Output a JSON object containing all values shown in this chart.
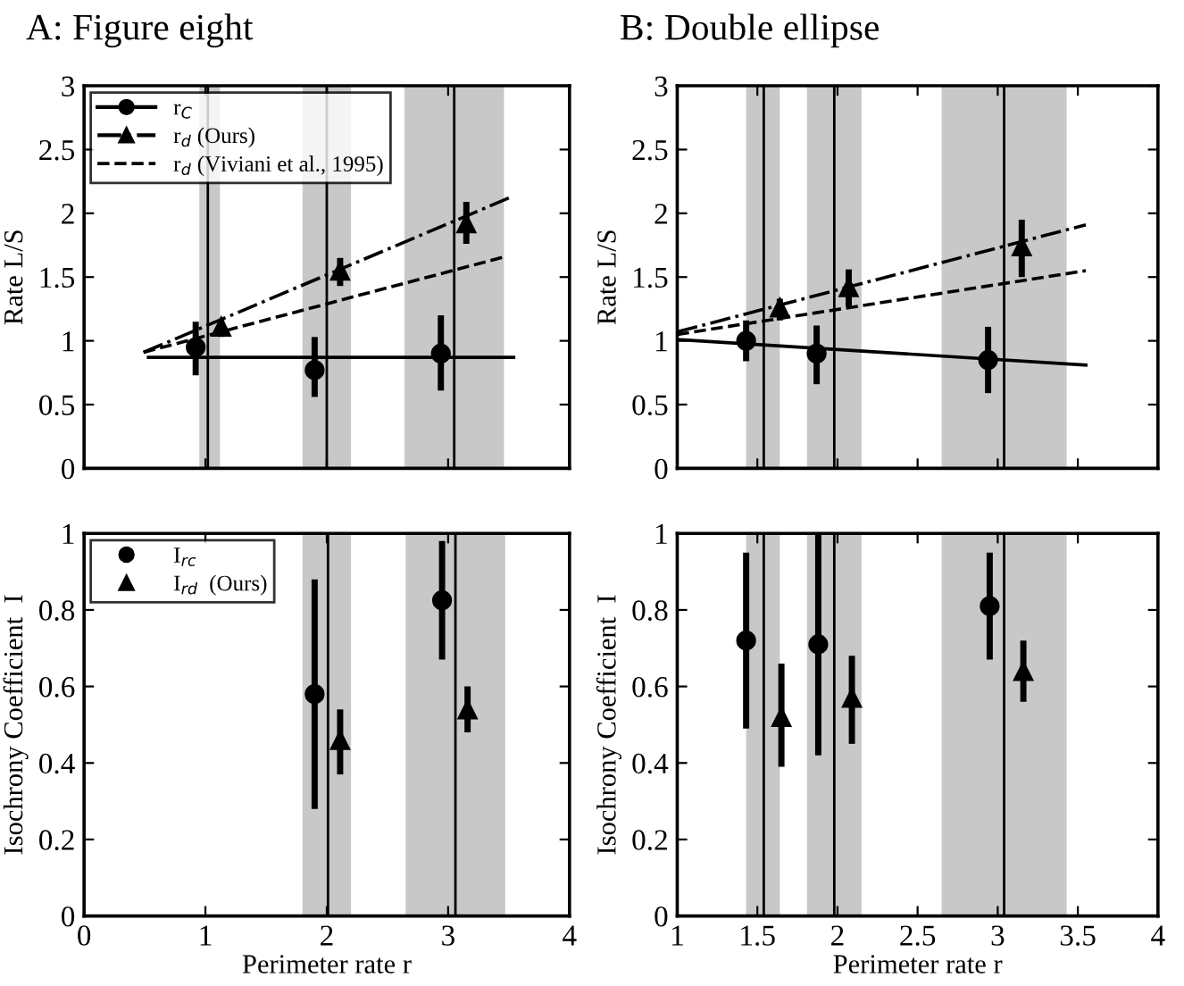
{
  "chart_data": [
    {
      "type": "scatter",
      "title": "A: Figure eight",
      "ylabel": "Rate L/S",
      "xlim": [
        0,
        4
      ],
      "xticks": [
        0,
        1,
        2,
        3,
        4
      ],
      "ylim": [
        0,
        3
      ],
      "yticks": [
        0,
        0.5,
        1,
        1.5,
        2,
        2.5,
        3
      ],
      "tick_labels": "y",
      "legend": "top left",
      "series": [
        {
          "name": "r$_{C}$",
          "color": "#000000",
          "marker": "circle",
          "line_style": "solid",
          "x": [
            0.92,
            1.9,
            2.94
          ],
          "values": [
            0.95,
            0.77,
            0.9
          ],
          "errors": [
            [
              0.73,
              1.15
            ],
            [
              0.56,
              1.03
            ],
            [
              0.61,
              1.2
            ]
          ]
        },
        {
          "name": "r$_{d}$ (Ours)",
          "color": "#000000",
          "marker": "triangle",
          "line_style": "dashdot",
          "x": [
            1.13,
            2.11,
            3.15
          ],
          "values": [
            1.11,
            1.55,
            1.92
          ],
          "errors": [
            [
              1.03,
              1.17
            ],
            [
              1.43,
              1.65
            ],
            [
              1.76,
              2.09
            ]
          ]
        },
        {
          "type": "line",
          "name": "r$_{d}$ (Viviani et al., 1995)",
          "color": "#000000",
          "line_style": "dashed",
          "x": [
            0.49,
            3.47
          ],
          "values": [
            0.91,
            1.66
          ]
        },
        {
          "type": "line",
          "color": "#000000",
          "line_style": "solid",
          "x": [
            0.53,
            3.54
          ],
          "values": [
            0.87,
            0.87
          ]
        },
        {
          "type": "line",
          "color": "#000000",
          "line_style": "dashdot",
          "x": [
            0.49,
            3.5
          ],
          "values": [
            0.91,
            2.12
          ]
        }
      ],
      "bands": [
        {
          "axis": "x",
          "from": 0.95,
          "to": 1.12,
          "color": "#c8c8c8"
        },
        {
          "axis": "x",
          "from": 1.8,
          "to": 2.2,
          "color": "#c8c8c8"
        },
        {
          "axis": "x",
          "from": 2.64,
          "to": 3.46,
          "color": "#c8c8c8"
        }
      ],
      "ref_lines": [
        {
          "axis": "x",
          "value": 1.02,
          "color": "#000000"
        },
        {
          "axis": "x",
          "value": 2.0,
          "color": "#000000"
        },
        {
          "axis": "x",
          "value": 3.05,
          "color": "#000000"
        }
      ]
    },
    {
      "type": "scatter",
      "title": "B: Double ellipse",
      "ylabel": "Rate L/S",
      "xlim": [
        1,
        4
      ],
      "xticks": [
        1,
        1.5,
        2,
        2.5,
        3,
        3.5,
        4
      ],
      "ylim": [
        0,
        3
      ],
      "yticks": [
        0,
        0.5,
        1,
        1.5,
        2,
        2.5,
        3
      ],
      "tick_labels": "y",
      "series": [
        {
          "color": "#000000",
          "marker": "circle",
          "x": [
            1.43,
            1.87,
            2.94
          ],
          "values": [
            1.0,
            0.9,
            0.85
          ],
          "errors": [
            [
              0.84,
              1.16
            ],
            [
              0.66,
              1.12
            ],
            [
              0.59,
              1.11
            ]
          ]
        },
        {
          "color": "#000000",
          "marker": "triangle",
          "x": [
            1.64,
            2.07,
            3.15
          ],
          "values": [
            1.26,
            1.42,
            1.74
          ],
          "errors": [
            [
              1.16,
              1.33
            ],
            [
              1.27,
              1.56
            ],
            [
              1.5,
              1.95
            ]
          ]
        },
        {
          "type": "line",
          "color": "#000000",
          "line_style": "solid",
          "x": [
            1.0,
            3.55
          ],
          "values": [
            1.01,
            0.81
          ]
        },
        {
          "type": "line",
          "color": "#000000",
          "line_style": "dashdot",
          "x": [
            1.0,
            3.55
          ],
          "values": [
            1.07,
            1.91
          ]
        },
        {
          "type": "line",
          "color": "#000000",
          "line_style": "dashed",
          "x": [
            1.0,
            3.55
          ],
          "values": [
            1.05,
            1.55
          ]
        }
      ],
      "bands": [
        {
          "axis": "x",
          "from": 1.43,
          "to": 1.64,
          "color": "#c8c8c8"
        },
        {
          "axis": "x",
          "from": 1.81,
          "to": 2.15,
          "color": "#c8c8c8"
        },
        {
          "axis": "x",
          "from": 2.65,
          "to": 3.43,
          "color": "#c8c8c8"
        }
      ],
      "ref_lines": [
        {
          "axis": "x",
          "value": 1.54,
          "color": "#000000"
        },
        {
          "axis": "x",
          "value": 1.98,
          "color": "#000000"
        },
        {
          "axis": "x",
          "value": 3.04,
          "color": "#000000"
        }
      ]
    },
    {
      "type": "scatter",
      "xlabel": "Perimeter rate r",
      "ylabel": "Isochrony Coefficient  I",
      "xlim": [
        0,
        4
      ],
      "xticks": [
        0,
        1,
        2,
        3,
        4
      ],
      "ylim": [
        0,
        1
      ],
      "yticks": [
        0,
        0.2,
        0.4,
        0.6,
        0.8,
        1
      ],
      "legend": "top left",
      "series": [
        {
          "name": "I$_{rc}$",
          "color": "#000000",
          "marker": "circle",
          "x": [
            1.9,
            2.95
          ],
          "values": [
            0.58,
            0.825
          ],
          "errors": [
            [
              0.28,
              0.88
            ],
            [
              0.67,
              0.98
            ]
          ]
        },
        {
          "name": "I$_{rd}$  (Ours)",
          "color": "#000000",
          "marker": "triangle",
          "x": [
            2.11,
            3.16
          ],
          "values": [
            0.46,
            0.54
          ],
          "errors": [
            [
              0.37,
              0.54
            ],
            [
              0.48,
              0.6
            ]
          ]
        }
      ],
      "bands": [
        {
          "axis": "x",
          "from": 1.8,
          "to": 2.2,
          "color": "#c8c8c8"
        },
        {
          "axis": "x",
          "from": 2.65,
          "to": 3.47,
          "color": "#c8c8c8"
        }
      ],
      "ref_lines": [
        {
          "axis": "x",
          "value": 2.01,
          "color": "#000000"
        },
        {
          "axis": "x",
          "value": 3.06,
          "color": "#000000"
        }
      ]
    },
    {
      "type": "scatter",
      "xlabel": "Perimeter rate r",
      "ylabel": "Isochrony Coefficient  I",
      "xlim": [
        1,
        4
      ],
      "xticks": [
        1,
        1.5,
        2,
        2.5,
        3,
        3.5,
        4
      ],
      "ylim": [
        0,
        1
      ],
      "yticks": [
        0,
        0.2,
        0.4,
        0.6,
        0.8,
        1
      ],
      "series": [
        {
          "color": "#000000",
          "marker": "circle",
          "x": [
            1.43,
            1.88,
            2.95
          ],
          "values": [
            0.72,
            0.71,
            0.81
          ],
          "errors": [
            [
              0.49,
              0.95
            ],
            [
              0.42,
              1.0
            ],
            [
              0.67,
              0.95
            ]
          ]
        },
        {
          "color": "#000000",
          "marker": "triangle",
          "x": [
            1.65,
            2.09,
            3.16
          ],
          "values": [
            0.52,
            0.57,
            0.64
          ],
          "errors": [
            [
              0.39,
              0.66
            ],
            [
              0.45,
              0.68
            ],
            [
              0.56,
              0.72
            ]
          ]
        }
      ],
      "bands": [
        {
          "axis": "x",
          "from": 1.43,
          "to": 1.64,
          "color": "#c8c8c8"
        },
        {
          "axis": "x",
          "from": 1.81,
          "to": 2.15,
          "color": "#c8c8c8"
        },
        {
          "axis": "x",
          "from": 2.65,
          "to": 3.43,
          "color": "#c8c8c8"
        }
      ],
      "ref_lines": [
        {
          "axis": "x",
          "value": 1.54,
          "color": "#000000"
        },
        {
          "axis": "x",
          "value": 1.98,
          "color": "#000000"
        },
        {
          "axis": "x",
          "value": 3.04,
          "color": "#000000"
        }
      ]
    }
  ]
}
